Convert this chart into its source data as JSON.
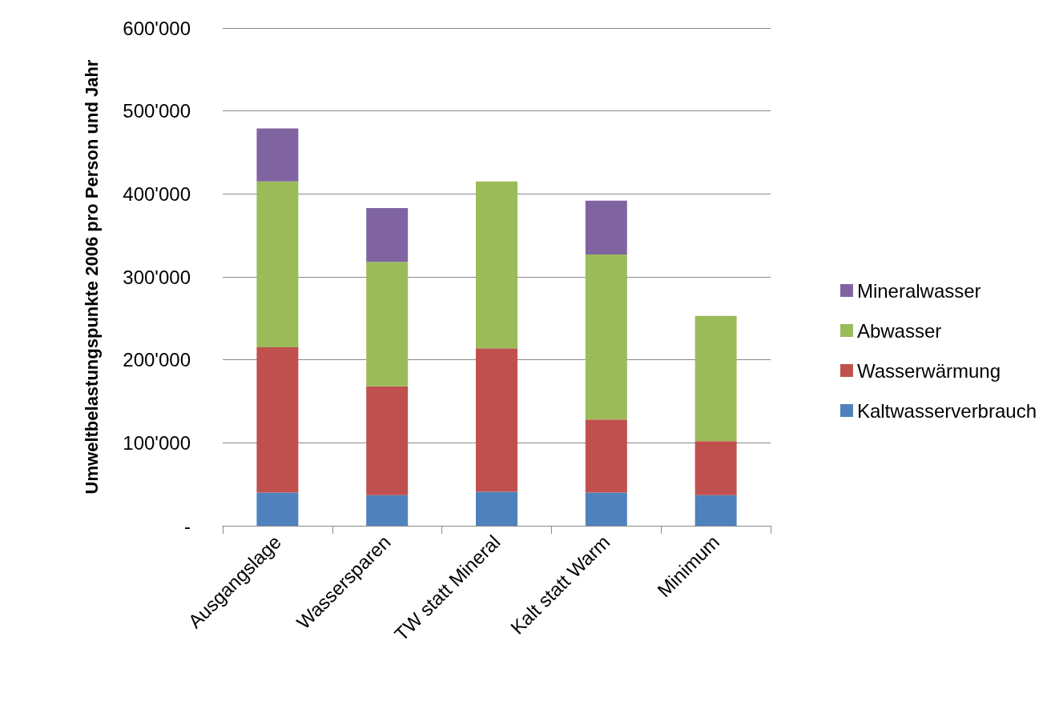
{
  "chart_data": {
    "type": "bar",
    "stacked": true,
    "ylabel": "Umweltbelastungspunkte 2006 pro Person und Jahr",
    "categories": [
      "Ausgangslage",
      "Wassersparen",
      "TW statt Mineral",
      "Kalt statt Warm",
      "Minimum"
    ],
    "series": [
      {
        "name": "Kaltwasserverbrauch",
        "color": "#4f81bd",
        "values": [
          40000,
          37000,
          41000,
          40000,
          37000
        ]
      },
      {
        "name": "Wasserwärmung",
        "color": "#c0504d",
        "values": [
          175000,
          131000,
          173000,
          88000,
          65000
        ]
      },
      {
        "name": "Abwasser",
        "color": "#9bbb59",
        "values": [
          200000,
          150000,
          201000,
          199000,
          151000
        ]
      },
      {
        "name": "Mineralwasser",
        "color": "#8064a2",
        "values": [
          64000,
          65000,
          null,
          65000,
          null
        ]
      }
    ],
    "ylim": [
      0,
      600000
    ],
    "yticks": [
      {
        "value": 0,
        "label": "-"
      },
      {
        "value": 100000,
        "label": "100'000"
      },
      {
        "value": 200000,
        "label": "200'000"
      },
      {
        "value": 300000,
        "label": "300'000"
      },
      {
        "value": 400000,
        "label": "400'000"
      },
      {
        "value": 500000,
        "label": "500'000"
      },
      {
        "value": 600000,
        "label": "600'000"
      }
    ],
    "grid": "y",
    "legend": "right"
  }
}
